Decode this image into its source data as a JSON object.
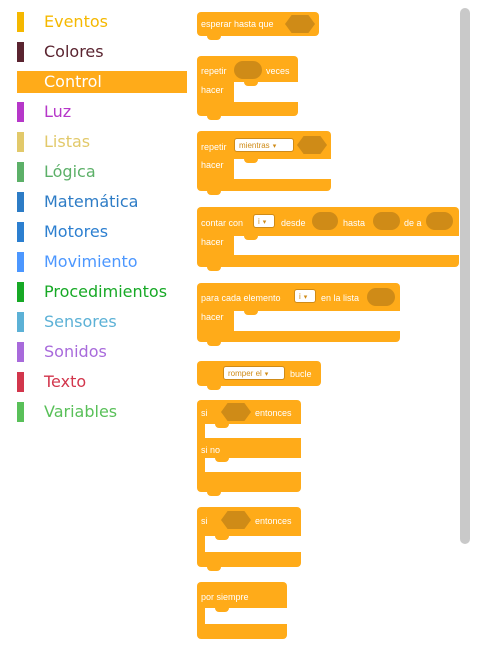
{
  "categories": [
    {
      "label": "Eventos",
      "color": "#F5B800"
    },
    {
      "label": "Colores",
      "color": "#5A2430"
    },
    {
      "label": "Control",
      "color": "#FFAB19",
      "selected": true
    },
    {
      "label": "Luz",
      "color": "#B637C9"
    },
    {
      "label": "Listas",
      "color": "#E2C96A"
    },
    {
      "label": "Lógica",
      "color": "#5CB068"
    },
    {
      "label": "Matemática",
      "color": "#2D7CC6"
    },
    {
      "label": "Motores",
      "color": "#2C7FD0"
    },
    {
      "label": "Movimiento",
      "color": "#4C97FF"
    },
    {
      "label": "Procedimientos",
      "color": "#17A926"
    },
    {
      "label": "Sensores",
      "color": "#5CB1D6"
    },
    {
      "label": "Sonidos",
      "color": "#A86ADB"
    },
    {
      "label": "Texto",
      "color": "#D2364C"
    },
    {
      "label": "Variables",
      "color": "#59C059"
    }
  ],
  "blocks": {
    "wait_until": {
      "text": "esperar hasta que"
    },
    "repeat": {
      "text1": "repetir",
      "text2": "veces",
      "do": "hacer"
    },
    "repeat_while": {
      "text1": "repetir",
      "dropdown": "mientras",
      "do": "hacer"
    },
    "count_with": {
      "text1": "contar con",
      "var": "i",
      "text2": "desde",
      "text3": "hasta",
      "text4": "de a",
      "do": "hacer"
    },
    "for_each": {
      "text1": "para cada elemento",
      "var": "i",
      "text2": "en la lista",
      "do": "hacer"
    },
    "break": {
      "dropdown": "romper el",
      "text": "bucle"
    },
    "if_else": {
      "if": "si",
      "then": "entonces",
      "else": "si no"
    },
    "if": {
      "if": "si",
      "then": "entonces"
    },
    "forever": {
      "text": "por siempre"
    }
  },
  "colors": {
    "control": "#FFAB19",
    "control_dark": "#cf8b17"
  },
  "icons": {
    "dropdown": "▾"
  }
}
